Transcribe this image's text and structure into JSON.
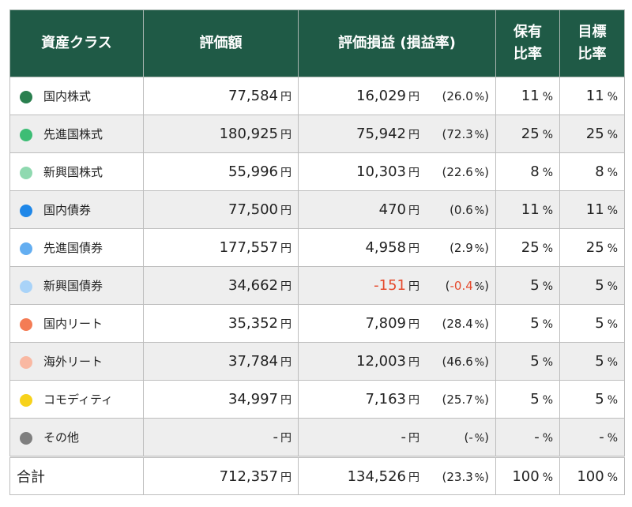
{
  "headers": {
    "asset_class": "資産クラス",
    "valuation": "評価額",
    "gain_loss": "評価損益 (損益率)",
    "holding_ratio_l1": "保有",
    "holding_ratio_l2": "比率",
    "target_ratio_l1": "目標",
    "target_ratio_l2": "比率"
  },
  "units": {
    "yen": "円",
    "percent": "%"
  },
  "rows": [
    {
      "name": "国内株式",
      "color": "#2a7f4f",
      "value": "77,584",
      "gain": "16,029",
      "rate": "26.0",
      "holding": "11",
      "target": "11",
      "negative": false
    },
    {
      "name": "先進国株式",
      "color": "#3dbd75",
      "value": "180,925",
      "gain": "75,942",
      "rate": "72.3",
      "holding": "25",
      "target": "25",
      "negative": false
    },
    {
      "name": "新興国株式",
      "color": "#8fd9b0",
      "value": "55,996",
      "gain": "10,303",
      "rate": "22.6",
      "holding": "8",
      "target": "8",
      "negative": false
    },
    {
      "name": "国内債券",
      "color": "#1f87e8",
      "value": "77,500",
      "gain": "470",
      "rate": "0.6",
      "holding": "11",
      "target": "11",
      "negative": false
    },
    {
      "name": "先進国債券",
      "color": "#64aef1",
      "value": "177,557",
      "gain": "4,958",
      "rate": "2.9",
      "holding": "25",
      "target": "25",
      "negative": false
    },
    {
      "name": "新興国債券",
      "color": "#a9d3f8",
      "value": "34,662",
      "gain": "-151",
      "rate": "-0.4",
      "holding": "5",
      "target": "5",
      "negative": true
    },
    {
      "name": "国内リート",
      "color": "#f47c55",
      "value": "35,352",
      "gain": "7,809",
      "rate": "28.4",
      "holding": "5",
      "target": "5",
      "negative": false
    },
    {
      "name": "海外リート",
      "color": "#f9b8a2",
      "value": "37,784",
      "gain": "12,003",
      "rate": "46.6",
      "holding": "5",
      "target": "5",
      "negative": false
    },
    {
      "name": "コモディティ",
      "color": "#f7d21b",
      "value": "34,997",
      "gain": "7,163",
      "rate": "25.7",
      "holding": "5",
      "target": "5",
      "negative": false
    },
    {
      "name": "その他",
      "color": "#7f7f7f",
      "value": "-",
      "gain": "-",
      "rate": "-",
      "holding": "-",
      "target": "-",
      "negative": false
    }
  ],
  "total": {
    "label": "合計",
    "value": "712,357",
    "gain": "134,526",
    "rate": "23.3",
    "holding": "100",
    "target": "100"
  }
}
